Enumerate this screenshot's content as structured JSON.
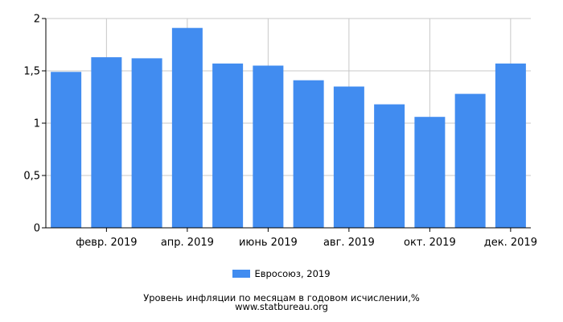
{
  "chart_data": {
    "type": "bar",
    "categories": [
      "",
      "февр. 2019",
      "",
      "апр. 2019",
      "",
      "июнь 2019",
      "",
      "авг. 2019",
      "",
      "окт. 2019",
      "",
      "дек. 2019"
    ],
    "series": [
      {
        "name": "Евросоюз, 2019",
        "values": [
          1.49,
          1.63,
          1.62,
          1.91,
          1.57,
          1.55,
          1.41,
          1.35,
          1.18,
          1.06,
          1.28,
          1.57
        ]
      }
    ],
    "yticks": [
      "0",
      "0,5",
      "1",
      "1,5",
      "2"
    ],
    "ylim": [
      0,
      2
    ],
    "grid": true,
    "legend_position": "bottom-center",
    "bar_color": "#418cf0"
  },
  "caption": {
    "title": "Уровень инфляции по месяцам в годовом исчислении,%",
    "source": "www.statbureau.org"
  }
}
